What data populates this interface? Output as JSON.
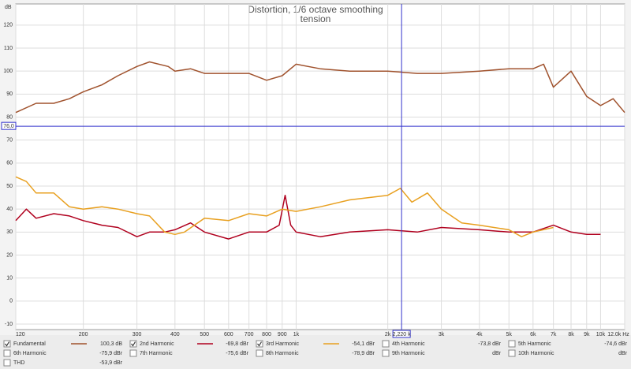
{
  "chart_data": {
    "type": "line",
    "title": "Distortion, 1/6 octave smoothing",
    "subtitle": "tension",
    "y_label": "dB",
    "xscale": "log",
    "grid": true,
    "xlim": [
      120,
      12000
    ],
    "ylim": [
      -12.4,
      129.2
    ],
    "xticks": [
      {
        "value": 120,
        "label": "120"
      },
      200,
      300,
      400,
      500,
      600,
      700,
      800,
      900,
      {
        "value": 1000,
        "label": "1k"
      },
      {
        "value": 2000,
        "label": "2k"
      },
      {
        "value": 3000,
        "label": "3k"
      },
      {
        "value": 4000,
        "label": "4k"
      },
      {
        "value": 5000,
        "label": "5k"
      },
      {
        "value": 6000,
        "label": "6k"
      },
      {
        "value": 7000,
        "label": "7k"
      },
      {
        "value": 8000,
        "label": "8k"
      },
      {
        "value": 9000,
        "label": "9k"
      },
      {
        "value": 10000,
        "label": "10k"
      },
      {
        "value": 12000,
        "label": "12.0k Hz"
      }
    ],
    "yticks": [
      -10,
      0,
      10,
      20,
      30,
      40,
      50,
      60,
      70,
      80,
      90,
      100,
      110,
      120
    ],
    "cursor": {
      "x": 2220,
      "x_label": "2,220 k",
      "y": 76,
      "y_label": "76,0",
      "color": "#3333cc"
    },
    "series": [
      {
        "name": "Fundamental",
        "color": "#a0522d",
        "checked": true,
        "readout": "100,3 dB",
        "x": [
          120,
          140,
          160,
          180,
          200,
          230,
          260,
          300,
          330,
          380,
          400,
          450,
          500,
          550,
          600,
          700,
          800,
          900,
          1000,
          1200,
          1500,
          2000,
          2500,
          3000,
          4000,
          5000,
          6000,
          6500,
          7000,
          8000,
          9000,
          10000,
          11000,
          12000
        ],
        "values": [
          82,
          86,
          86,
          88,
          91,
          94,
          98,
          102,
          104,
          102,
          100,
          101,
          99,
          99,
          99,
          99,
          96,
          98,
          103,
          101,
          100,
          100,
          99,
          99,
          100,
          101,
          101,
          103,
          93,
          100,
          89,
          85,
          88,
          82
        ]
      },
      {
        "name": "2nd Harmonic",
        "color": "#b0001e",
        "checked": true,
        "readout": "-69,8 dBr",
        "x": [
          120,
          130,
          140,
          160,
          180,
          200,
          230,
          260,
          300,
          330,
          370,
          400,
          450,
          500,
          600,
          700,
          800,
          880,
          920,
          960,
          1000,
          1200,
          1500,
          2000,
          2500,
          3000,
          4000,
          5000,
          6000,
          7000,
          8000,
          9000,
          10000
        ],
        "values": [
          35,
          40,
          36,
          38,
          37,
          35,
          33,
          32,
          28,
          30,
          30,
          31,
          34,
          30,
          27,
          30,
          30,
          33,
          46,
          33,
          30,
          28,
          30,
          31,
          30,
          32,
          31,
          30,
          30,
          33,
          30,
          29,
          29
        ]
      },
      {
        "name": "3rd Harmonic",
        "color": "#e8a020",
        "checked": true,
        "readout": "-54,1 dBr",
        "x": [
          120,
          130,
          140,
          160,
          180,
          200,
          230,
          260,
          300,
          330,
          370,
          400,
          430,
          500,
          600,
          700,
          800,
          900,
          1000,
          1200,
          1500,
          2000,
          2200,
          2400,
          2700,
          3000,
          3500,
          4000,
          5000,
          5500,
          6000,
          7000
        ],
        "values": [
          54,
          52,
          47,
          47,
          41,
          40,
          41,
          40,
          38,
          37,
          30,
          29,
          30,
          36,
          35,
          38,
          37,
          40,
          39,
          41,
          44,
          46,
          49,
          43,
          47,
          40,
          34,
          33,
          31,
          28,
          30,
          32
        ]
      },
      {
        "name": "4th Harmonic",
        "color": "#d4a800",
        "checked": false,
        "readout": "-73,8 dBr",
        "x": [],
        "values": []
      },
      {
        "name": "5th Harmonic",
        "color": "#a0b040",
        "checked": false,
        "readout": "-74,6 dBr",
        "x": [],
        "values": []
      },
      {
        "name": "6th Harmonic",
        "color": "#4080e0",
        "checked": false,
        "readout": "-75,9 dBr",
        "x": [],
        "values": []
      },
      {
        "name": "7th Harmonic",
        "color": "#e060e0",
        "checked": false,
        "readout": "-75,6 dBr",
        "x": [],
        "values": []
      },
      {
        "name": "8th Harmonic",
        "color": "#808080",
        "checked": false,
        "readout": "-78,9 dBr",
        "x": [],
        "values": []
      },
      {
        "name": "9th Harmonic",
        "color": "#00a0c0",
        "checked": false,
        "readout": "dBr",
        "x": [],
        "values": []
      },
      {
        "name": "10th Harmonic",
        "color": "#808000",
        "checked": false,
        "readout": "dBr",
        "x": [],
        "values": []
      },
      {
        "name": "THD",
        "color": "#000000",
        "checked": false,
        "readout": "-53,9 dBr",
        "x": [],
        "values": []
      }
    ]
  }
}
